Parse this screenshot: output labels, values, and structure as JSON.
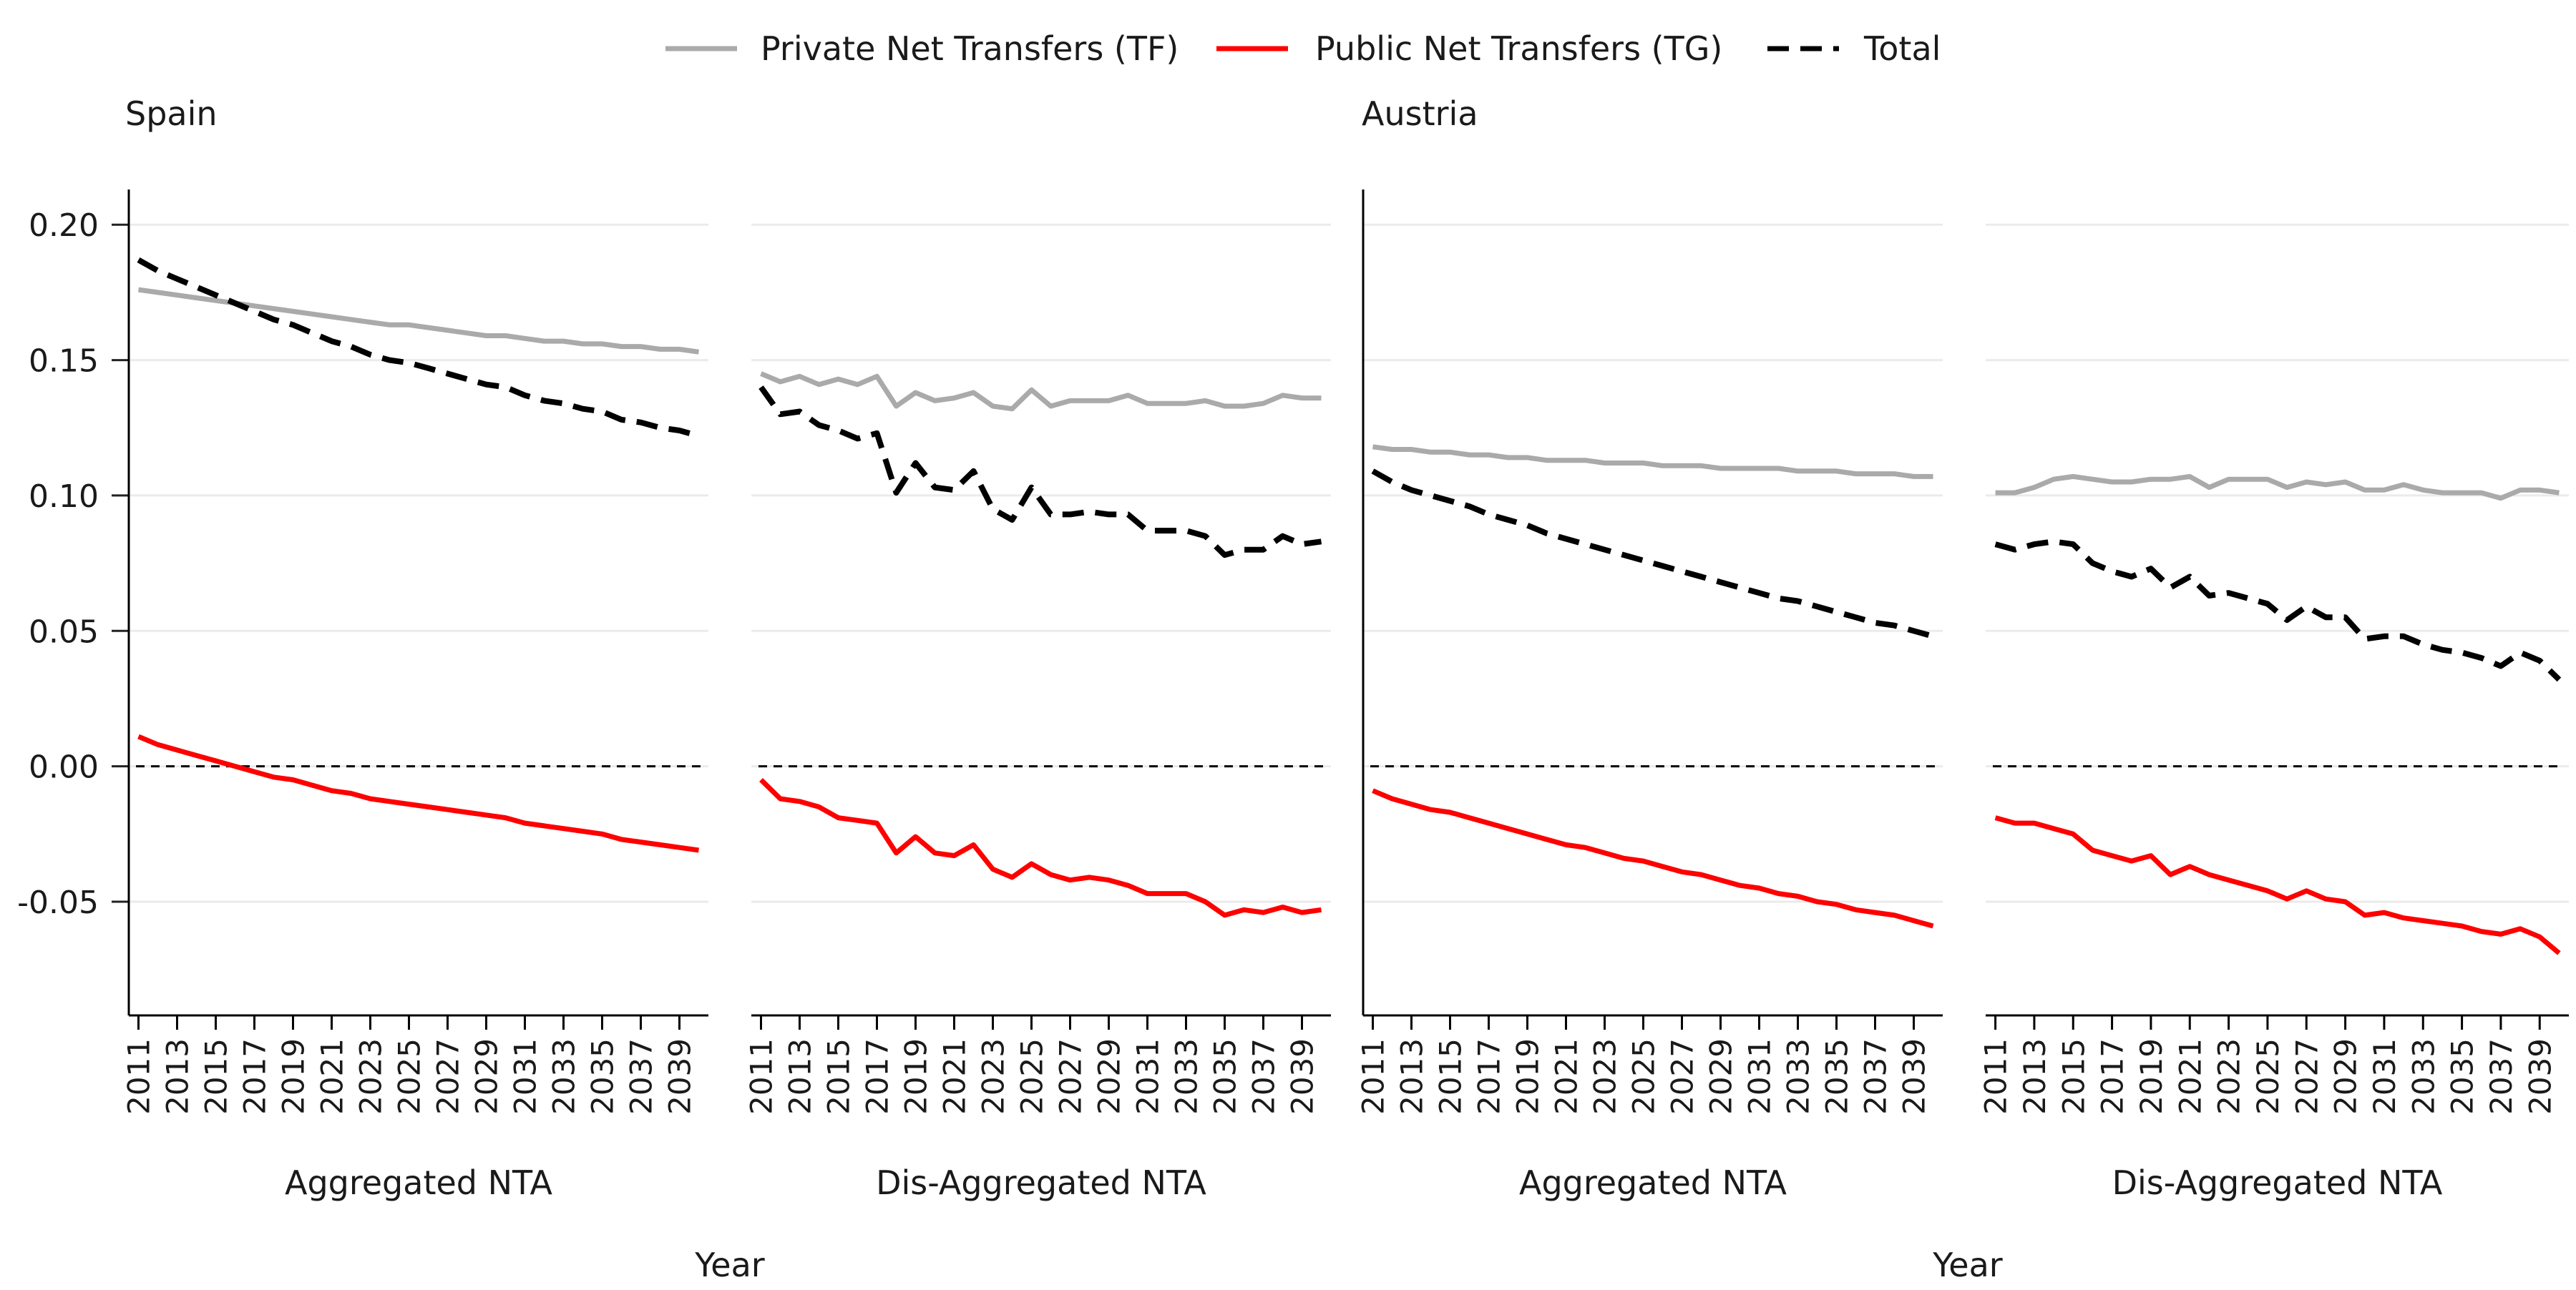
{
  "legend": {
    "placement": "top-center",
    "items": [
      {
        "name": "Private Net Transfers (TF)",
        "color": "#aaaaaa",
        "style": "solid"
      },
      {
        "name": "Public Net Transfers (TG)",
        "color": "#ff0000",
        "style": "solid"
      },
      {
        "name": "Total",
        "color": "#000000",
        "style": "dashed"
      }
    ]
  },
  "x_axis_title": "Year",
  "chart_data": {
    "type": "line",
    "ylim": [
      -0.092,
      0.213
    ],
    "xlim": [
      2010.5,
      2040.5
    ],
    "y_ticks": [
      -0.05,
      0.0,
      0.05,
      0.1,
      0.15,
      0.2
    ],
    "y_tick_labels": [
      "-0.05",
      "0.00",
      "0.05",
      "0.10",
      "0.15",
      "0.20"
    ],
    "x_ticks": [
      2011,
      2013,
      2015,
      2017,
      2019,
      2021,
      2023,
      2025,
      2027,
      2029,
      2031,
      2033,
      2035,
      2037,
      2039
    ],
    "x_tick_labels": [
      "2011",
      "2013",
      "2015",
      "2017",
      "2019",
      "2021",
      "2023",
      "2025",
      "2027",
      "2029",
      "2031",
      "2033",
      "2035",
      "2037",
      "2039"
    ],
    "x": [
      2011,
      2012,
      2013,
      2014,
      2015,
      2016,
      2017,
      2018,
      2019,
      2020,
      2021,
      2022,
      2023,
      2024,
      2025,
      2026,
      2027,
      2028,
      2029,
      2030,
      2031,
      2032,
      2033,
      2034,
      2035,
      2036,
      2037,
      2038,
      2039,
      2040
    ],
    "reference_line": 0,
    "grid": "horizontal-light",
    "groups": [
      {
        "country": "Spain",
        "panels": [
          {
            "label": "Aggregated NTA",
            "series": [
              {
                "name": "Private Net Transfers (TF)",
                "values": [
                  0.176,
                  0.175,
                  0.174,
                  0.173,
                  0.172,
                  0.171,
                  0.17,
                  0.169,
                  0.168,
                  0.167,
                  0.166,
                  0.165,
                  0.164,
                  0.163,
                  0.163,
                  0.162,
                  0.161,
                  0.16,
                  0.159,
                  0.159,
                  0.158,
                  0.157,
                  0.157,
                  0.156,
                  0.156,
                  0.155,
                  0.155,
                  0.154,
                  0.154,
                  0.153
                ]
              },
              {
                "name": "Public Net Transfers (TG)",
                "values": [
                  0.011,
                  0.008,
                  0.006,
                  0.004,
                  0.002,
                  0.0,
                  -0.002,
                  -0.004,
                  -0.005,
                  -0.007,
                  -0.009,
                  -0.01,
                  -0.012,
                  -0.013,
                  -0.014,
                  -0.015,
                  -0.016,
                  -0.017,
                  -0.018,
                  -0.019,
                  -0.021,
                  -0.022,
                  -0.023,
                  -0.024,
                  -0.025,
                  -0.027,
                  -0.028,
                  -0.029,
                  -0.03,
                  -0.031
                ]
              },
              {
                "name": "Total",
                "values": [
                  0.187,
                  0.183,
                  0.18,
                  0.177,
                  0.174,
                  0.171,
                  0.168,
                  0.165,
                  0.163,
                  0.16,
                  0.157,
                  0.155,
                  0.152,
                  0.15,
                  0.149,
                  0.147,
                  0.145,
                  0.143,
                  0.141,
                  0.14,
                  0.137,
                  0.135,
                  0.134,
                  0.132,
                  0.131,
                  0.128,
                  0.127,
                  0.125,
                  0.124,
                  0.122
                ]
              }
            ]
          },
          {
            "label": "Dis-Aggregated NTA",
            "series": [
              {
                "name": "Private Net Transfers (TF)",
                "values": [
                  0.145,
                  0.142,
                  0.144,
                  0.141,
                  0.143,
                  0.141,
                  0.144,
                  0.133,
                  0.138,
                  0.135,
                  0.136,
                  0.138,
                  0.133,
                  0.132,
                  0.139,
                  0.133,
                  0.135,
                  0.135,
                  0.135,
                  0.137,
                  0.134,
                  0.134,
                  0.134,
                  0.135,
                  0.133,
                  0.133,
                  0.134,
                  0.137,
                  0.136,
                  0.136
                ]
              },
              {
                "name": "Public Net Transfers (TG)",
                "values": [
                  -0.005,
                  -0.012,
                  -0.013,
                  -0.015,
                  -0.019,
                  -0.02,
                  -0.021,
                  -0.032,
                  -0.026,
                  -0.032,
                  -0.033,
                  -0.029,
                  -0.038,
                  -0.041,
                  -0.036,
                  -0.04,
                  -0.042,
                  -0.041,
                  -0.042,
                  -0.044,
                  -0.047,
                  -0.047,
                  -0.047,
                  -0.05,
                  -0.055,
                  -0.053,
                  -0.054,
                  -0.052,
                  -0.054,
                  -0.053
                ]
              },
              {
                "name": "Total",
                "values": [
                  0.14,
                  0.13,
                  0.131,
                  0.126,
                  0.124,
                  0.121,
                  0.123,
                  0.101,
                  0.112,
                  0.103,
                  0.102,
                  0.109,
                  0.095,
                  0.091,
                  0.103,
                  0.093,
                  0.093,
                  0.094,
                  0.093,
                  0.093,
                  0.087,
                  0.087,
                  0.087,
                  0.085,
                  0.078,
                  0.08,
                  0.08,
                  0.085,
                  0.082,
                  0.083
                ]
              }
            ]
          }
        ]
      },
      {
        "country": "Austria",
        "panels": [
          {
            "label": "Aggregated NTA",
            "series": [
              {
                "name": "Private Net Transfers (TF)",
                "values": [
                  0.118,
                  0.117,
                  0.117,
                  0.116,
                  0.116,
                  0.115,
                  0.115,
                  0.114,
                  0.114,
                  0.113,
                  0.113,
                  0.113,
                  0.112,
                  0.112,
                  0.112,
                  0.111,
                  0.111,
                  0.111,
                  0.11,
                  0.11,
                  0.11,
                  0.11,
                  0.109,
                  0.109,
                  0.109,
                  0.108,
                  0.108,
                  0.108,
                  0.107,
                  0.107
                ]
              },
              {
                "name": "Public Net Transfers (TG)",
                "values": [
                  -0.009,
                  -0.012,
                  -0.014,
                  -0.016,
                  -0.017,
                  -0.019,
                  -0.021,
                  -0.023,
                  -0.025,
                  -0.027,
                  -0.029,
                  -0.03,
                  -0.032,
                  -0.034,
                  -0.035,
                  -0.037,
                  -0.039,
                  -0.04,
                  -0.042,
                  -0.044,
                  -0.045,
                  -0.047,
                  -0.048,
                  -0.05,
                  -0.051,
                  -0.053,
                  -0.054,
                  -0.055,
                  -0.057,
                  -0.059
                ]
              },
              {
                "name": "Total",
                "values": [
                  0.109,
                  0.105,
                  0.102,
                  0.1,
                  0.098,
                  0.096,
                  0.093,
                  0.091,
                  0.089,
                  0.086,
                  0.084,
                  0.082,
                  0.08,
                  0.078,
                  0.076,
                  0.074,
                  0.072,
                  0.07,
                  0.068,
                  0.066,
                  0.064,
                  0.062,
                  0.061,
                  0.059,
                  0.057,
                  0.055,
                  0.053,
                  0.052,
                  0.05,
                  0.048
                ]
              }
            ]
          },
          {
            "label": "Dis-Aggregated NTA",
            "series": [
              {
                "name": "Private Net Transfers (TF)",
                "values": [
                  0.101,
                  0.101,
                  0.103,
                  0.106,
                  0.107,
                  0.106,
                  0.105,
                  0.105,
                  0.106,
                  0.106,
                  0.107,
                  0.103,
                  0.106,
                  0.106,
                  0.106,
                  0.103,
                  0.105,
                  0.104,
                  0.105,
                  0.102,
                  0.102,
                  0.104,
                  0.102,
                  0.101,
                  0.101,
                  0.101,
                  0.099,
                  0.102,
                  0.102,
                  0.101
                ]
              },
              {
                "name": "Public Net Transfers (TG)",
                "values": [
                  -0.019,
                  -0.021,
                  -0.021,
                  -0.023,
                  -0.025,
                  -0.031,
                  -0.033,
                  -0.035,
                  -0.033,
                  -0.04,
                  -0.037,
                  -0.04,
                  -0.042,
                  -0.044,
                  -0.046,
                  -0.049,
                  -0.046,
                  -0.049,
                  -0.05,
                  -0.055,
                  -0.054,
                  -0.056,
                  -0.057,
                  -0.058,
                  -0.059,
                  -0.061,
                  -0.062,
                  -0.06,
                  -0.063,
                  -0.069
                ]
              },
              {
                "name": "Total",
                "values": [
                  0.082,
                  0.08,
                  0.082,
                  0.083,
                  0.082,
                  0.075,
                  0.072,
                  0.07,
                  0.073,
                  0.066,
                  0.07,
                  0.063,
                  0.064,
                  0.062,
                  0.06,
                  0.054,
                  0.059,
                  0.055,
                  0.055,
                  0.047,
                  0.048,
                  0.048,
                  0.045,
                  0.043,
                  0.042,
                  0.04,
                  0.037,
                  0.042,
                  0.039,
                  0.032
                ]
              }
            ]
          }
        ]
      }
    ]
  }
}
